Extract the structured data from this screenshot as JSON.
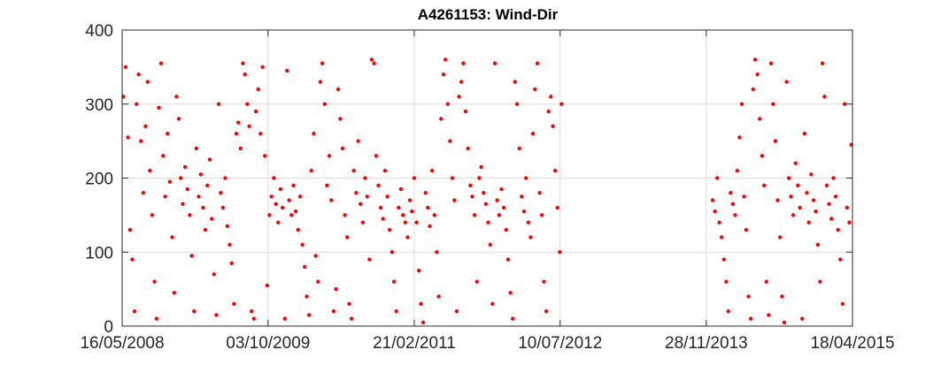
{
  "chart_data": {
    "type": "scatter",
    "title": "A4261153: Wind-Dir",
    "xlabel": "",
    "ylabel": "",
    "x_axis_type": "date",
    "xlim": [
      "2008-05-16",
      "2015-04-18"
    ],
    "ylim": [
      0,
      400
    ],
    "x_ticks": [
      {
        "date": "2008-05-16",
        "label": "16/05/2008"
      },
      {
        "date": "2009-10-03",
        "label": "03/10/2009"
      },
      {
        "date": "2011-02-21",
        "label": "21/02/2011"
      },
      {
        "date": "2012-07-10",
        "label": "10/07/2012"
      },
      {
        "date": "2013-11-28",
        "label": "28/11/2013"
      },
      {
        "date": "2015-04-18",
        "label": "18/04/2015"
      }
    ],
    "y_ticks": [
      0,
      100,
      200,
      300,
      400
    ],
    "grid": true,
    "legend": "none",
    "marker_color": "#ff0000",
    "series": [
      {
        "points": [
          [
            "2008-05-20",
            310
          ],
          [
            "2008-05-28",
            350
          ],
          [
            "2008-06-05",
            255
          ],
          [
            "2008-06-12",
            130
          ],
          [
            "2008-06-20",
            90
          ],
          [
            "2008-06-28",
            20
          ],
          [
            "2008-07-05",
            300
          ],
          [
            "2008-07-12",
            340
          ],
          [
            "2008-07-20",
            250
          ],
          [
            "2008-07-28",
            180
          ],
          [
            "2008-08-05",
            270
          ],
          [
            "2008-08-12",
            330
          ],
          [
            "2008-08-20",
            210
          ],
          [
            "2008-08-28",
            150
          ],
          [
            "2008-09-05",
            60
          ],
          [
            "2008-09-12",
            10
          ],
          [
            "2008-09-20",
            295
          ],
          [
            "2008-09-28",
            355
          ],
          [
            "2008-10-05",
            230
          ],
          [
            "2008-10-12",
            175
          ],
          [
            "2008-10-20",
            260
          ],
          [
            "2008-10-28",
            195
          ],
          [
            "2008-11-05",
            120
          ],
          [
            "2008-11-12",
            45
          ],
          [
            "2008-11-20",
            310
          ],
          [
            "2008-11-28",
            280
          ],
          [
            "2008-12-05",
            200
          ],
          [
            "2008-12-12",
            165
          ],
          [
            "2008-12-20",
            215
          ],
          [
            "2008-12-28",
            185
          ],
          [
            "2009-01-05",
            150
          ],
          [
            "2009-01-12",
            95
          ],
          [
            "2009-01-20",
            20
          ],
          [
            "2009-01-28",
            240
          ],
          [
            "2009-02-05",
            175
          ],
          [
            "2009-02-12",
            205
          ],
          [
            "2009-02-20",
            160
          ],
          [
            "2009-02-28",
            130
          ],
          [
            "2009-03-07",
            190
          ],
          [
            "2009-03-15",
            225
          ],
          [
            "2009-03-22",
            145
          ],
          [
            "2009-03-30",
            70
          ],
          [
            "2009-04-07",
            15
          ],
          [
            "2009-04-15",
            300
          ],
          [
            "2009-04-22",
            180
          ],
          [
            "2009-04-30",
            160
          ],
          [
            "2009-05-08",
            200
          ],
          [
            "2009-05-15",
            135
          ],
          [
            "2009-05-23",
            110
          ],
          [
            "2009-05-30",
            85
          ],
          [
            "2009-06-07",
            30
          ],
          [
            "2009-06-15",
            260
          ],
          [
            "2009-06-22",
            275
          ],
          [
            "2009-06-30",
            240
          ],
          [
            "2009-07-08",
            355
          ],
          [
            "2009-07-15",
            340
          ],
          [
            "2009-07-23",
            300
          ],
          [
            "2009-07-30",
            270
          ],
          [
            "2009-08-07",
            20
          ],
          [
            "2009-08-15",
            10
          ],
          [
            "2009-08-22",
            290
          ],
          [
            "2009-08-30",
            320
          ],
          [
            "2009-09-07",
            260
          ],
          [
            "2009-09-14",
            350
          ],
          [
            "2009-09-22",
            230
          ],
          [
            "2009-09-30",
            55
          ],
          [
            "2009-10-08",
            150
          ],
          [
            "2009-10-15",
            175
          ],
          [
            "2009-10-23",
            200
          ],
          [
            "2009-10-30",
            165
          ],
          [
            "2009-11-07",
            140
          ],
          [
            "2009-11-15",
            185
          ],
          [
            "2009-11-22",
            160
          ],
          [
            "2009-11-30",
            10
          ],
          [
            "2009-12-08",
            345
          ],
          [
            "2009-12-15",
            170
          ],
          [
            "2009-12-23",
            150
          ],
          [
            "2009-12-30",
            190
          ],
          [
            "2010-01-07",
            155
          ],
          [
            "2010-01-15",
            130
          ],
          [
            "2010-01-22",
            175
          ],
          [
            "2010-01-30",
            110
          ],
          [
            "2010-02-07",
            80
          ],
          [
            "2010-02-14",
            40
          ],
          [
            "2010-02-22",
            15
          ],
          [
            "2010-03-02",
            210
          ],
          [
            "2010-03-10",
            260
          ],
          [
            "2010-03-17",
            95
          ],
          [
            "2010-03-25",
            60
          ],
          [
            "2010-04-02",
            330
          ],
          [
            "2010-04-09",
            355
          ],
          [
            "2010-04-17",
            300
          ],
          [
            "2010-04-25",
            190
          ],
          [
            "2010-05-03",
            230
          ],
          [
            "2010-05-10",
            170
          ],
          [
            "2010-05-18",
            20
          ],
          [
            "2010-05-26",
            50
          ],
          [
            "2010-06-03",
            320
          ],
          [
            "2010-06-10",
            280
          ],
          [
            "2010-06-18",
            240
          ],
          [
            "2010-06-26",
            150
          ],
          [
            "2010-07-04",
            120
          ],
          [
            "2010-07-11",
            30
          ],
          [
            "2010-07-19",
            10
          ],
          [
            "2010-07-27",
            210
          ],
          [
            "2010-08-04",
            180
          ],
          [
            "2010-08-11",
            250
          ],
          [
            "2010-08-19",
            165
          ],
          [
            "2010-08-27",
            140
          ],
          [
            "2010-09-04",
            200
          ],
          [
            "2010-09-11",
            175
          ],
          [
            "2010-09-19",
            90
          ],
          [
            "2010-09-27",
            360
          ],
          [
            "2010-10-05",
            355
          ],
          [
            "2010-10-12",
            230
          ],
          [
            "2010-10-20",
            190
          ],
          [
            "2010-10-28",
            160
          ],
          [
            "2010-11-05",
            145
          ],
          [
            "2010-11-12",
            210
          ],
          [
            "2010-11-20",
            175
          ],
          [
            "2010-11-28",
            130
          ],
          [
            "2010-12-06",
            100
          ],
          [
            "2010-12-13",
            60
          ],
          [
            "2010-12-21",
            20
          ],
          [
            "2010-12-29",
            160
          ],
          [
            "2011-01-06",
            185
          ],
          [
            "2011-01-13",
            150
          ],
          [
            "2011-01-21",
            140
          ],
          [
            "2011-01-29",
            120
          ],
          [
            "2011-02-06",
            170
          ],
          [
            "2011-02-13",
            155
          ],
          [
            "2011-02-21",
            200
          ],
          [
            "2011-03-01",
            140
          ],
          [
            "2011-03-09",
            75
          ],
          [
            "2011-03-16",
            30
          ],
          [
            "2011-03-24",
            5
          ],
          [
            "2011-04-01",
            180
          ],
          [
            "2011-04-09",
            160
          ],
          [
            "2011-04-16",
            135
          ],
          [
            "2011-04-24",
            210
          ],
          [
            "2011-05-02",
            150
          ],
          [
            "2011-05-10",
            100
          ],
          [
            "2011-05-17",
            40
          ],
          [
            "2011-05-25",
            280
          ],
          [
            "2011-06-02",
            340
          ],
          [
            "2011-06-09",
            360
          ],
          [
            "2011-06-17",
            300
          ],
          [
            "2011-06-25",
            250
          ],
          [
            "2011-07-03",
            200
          ],
          [
            "2011-07-10",
            170
          ],
          [
            "2011-07-18",
            20
          ],
          [
            "2011-07-26",
            310
          ],
          [
            "2011-08-03",
            330
          ],
          [
            "2011-08-10",
            355
          ],
          [
            "2011-08-18",
            290
          ],
          [
            "2011-08-26",
            240
          ],
          [
            "2011-09-03",
            190
          ],
          [
            "2011-09-10",
            175
          ],
          [
            "2011-09-18",
            150
          ],
          [
            "2011-09-26",
            60
          ],
          [
            "2011-10-04",
            200
          ],
          [
            "2011-10-11",
            215
          ],
          [
            "2011-10-19",
            180
          ],
          [
            "2011-10-27",
            165
          ],
          [
            "2011-11-04",
            140
          ],
          [
            "2011-11-11",
            110
          ],
          [
            "2011-11-19",
            30
          ],
          [
            "2011-11-27",
            355
          ],
          [
            "2011-12-05",
            170
          ],
          [
            "2011-12-12",
            150
          ],
          [
            "2011-12-20",
            185
          ],
          [
            "2011-12-28",
            160
          ],
          [
            "2012-01-05",
            130
          ],
          [
            "2012-01-12",
            90
          ],
          [
            "2012-01-20",
            45
          ],
          [
            "2012-01-28",
            10
          ],
          [
            "2012-02-05",
            330
          ],
          [
            "2012-02-12",
            300
          ],
          [
            "2012-02-20",
            240
          ],
          [
            "2012-02-28",
            175
          ],
          [
            "2012-03-07",
            155
          ],
          [
            "2012-03-14",
            200
          ],
          [
            "2012-03-22",
            140
          ],
          [
            "2012-03-30",
            120
          ],
          [
            "2012-04-07",
            260
          ],
          [
            "2012-04-14",
            320
          ],
          [
            "2012-04-22",
            355
          ],
          [
            "2012-04-30",
            180
          ],
          [
            "2012-05-08",
            150
          ],
          [
            "2012-05-15",
            60
          ],
          [
            "2012-05-23",
            20
          ],
          [
            "2012-05-31",
            290
          ],
          [
            "2012-06-08",
            310
          ],
          [
            "2012-06-15",
            270
          ],
          [
            "2012-06-23",
            210
          ],
          [
            "2012-07-01",
            160
          ],
          [
            "2012-07-09",
            100
          ],
          [
            "2012-07-15",
            300
          ],
          [
            "2013-12-20",
            170
          ],
          [
            "2013-12-28",
            155
          ],
          [
            "2014-01-05",
            200
          ],
          [
            "2014-01-12",
            140
          ],
          [
            "2014-01-20",
            120
          ],
          [
            "2014-01-28",
            90
          ],
          [
            "2014-02-05",
            60
          ],
          [
            "2014-02-12",
            20
          ],
          [
            "2014-02-20",
            180
          ],
          [
            "2014-02-28",
            165
          ],
          [
            "2014-03-08",
            150
          ],
          [
            "2014-03-15",
            210
          ],
          [
            "2014-03-23",
            255
          ],
          [
            "2014-03-31",
            300
          ],
          [
            "2014-04-08",
            175
          ],
          [
            "2014-04-15",
            130
          ],
          [
            "2014-04-23",
            40
          ],
          [
            "2014-05-01",
            10
          ],
          [
            "2014-05-09",
            320
          ],
          [
            "2014-05-16",
            360
          ],
          [
            "2014-05-24",
            340
          ],
          [
            "2014-06-01",
            280
          ],
          [
            "2014-06-09",
            230
          ],
          [
            "2014-06-16",
            190
          ],
          [
            "2014-06-24",
            60
          ],
          [
            "2014-07-02",
            15
          ],
          [
            "2014-07-10",
            355
          ],
          [
            "2014-07-17",
            300
          ],
          [
            "2014-07-25",
            250
          ],
          [
            "2014-08-02",
            170
          ],
          [
            "2014-08-10",
            120
          ],
          [
            "2014-08-17",
            40
          ],
          [
            "2014-08-25",
            5
          ],
          [
            "2014-09-02",
            330
          ],
          [
            "2014-09-10",
            200
          ],
          [
            "2014-09-17",
            175
          ],
          [
            "2014-09-25",
            150
          ],
          [
            "2014-10-03",
            220
          ],
          [
            "2014-10-11",
            190
          ],
          [
            "2014-10-18",
            160
          ],
          [
            "2014-10-26",
            10
          ],
          [
            "2014-11-03",
            260
          ],
          [
            "2014-11-11",
            180
          ],
          [
            "2014-11-18",
            140
          ],
          [
            "2014-11-26",
            205
          ],
          [
            "2014-12-04",
            170
          ],
          [
            "2014-12-12",
            155
          ],
          [
            "2014-12-19",
            110
          ],
          [
            "2014-12-27",
            60
          ],
          [
            "2015-01-04",
            355
          ],
          [
            "2015-01-11",
            310
          ],
          [
            "2015-01-19",
            190
          ],
          [
            "2015-01-27",
            165
          ],
          [
            "2015-02-04",
            145
          ],
          [
            "2015-02-11",
            200
          ],
          [
            "2015-02-19",
            175
          ],
          [
            "2015-02-27",
            130
          ],
          [
            "2015-03-07",
            90
          ],
          [
            "2015-03-15",
            30
          ],
          [
            "2015-03-22",
            300
          ],
          [
            "2015-03-30",
            160
          ],
          [
            "2015-04-07",
            140
          ],
          [
            "2015-04-14",
            245
          ]
        ]
      }
    ]
  }
}
